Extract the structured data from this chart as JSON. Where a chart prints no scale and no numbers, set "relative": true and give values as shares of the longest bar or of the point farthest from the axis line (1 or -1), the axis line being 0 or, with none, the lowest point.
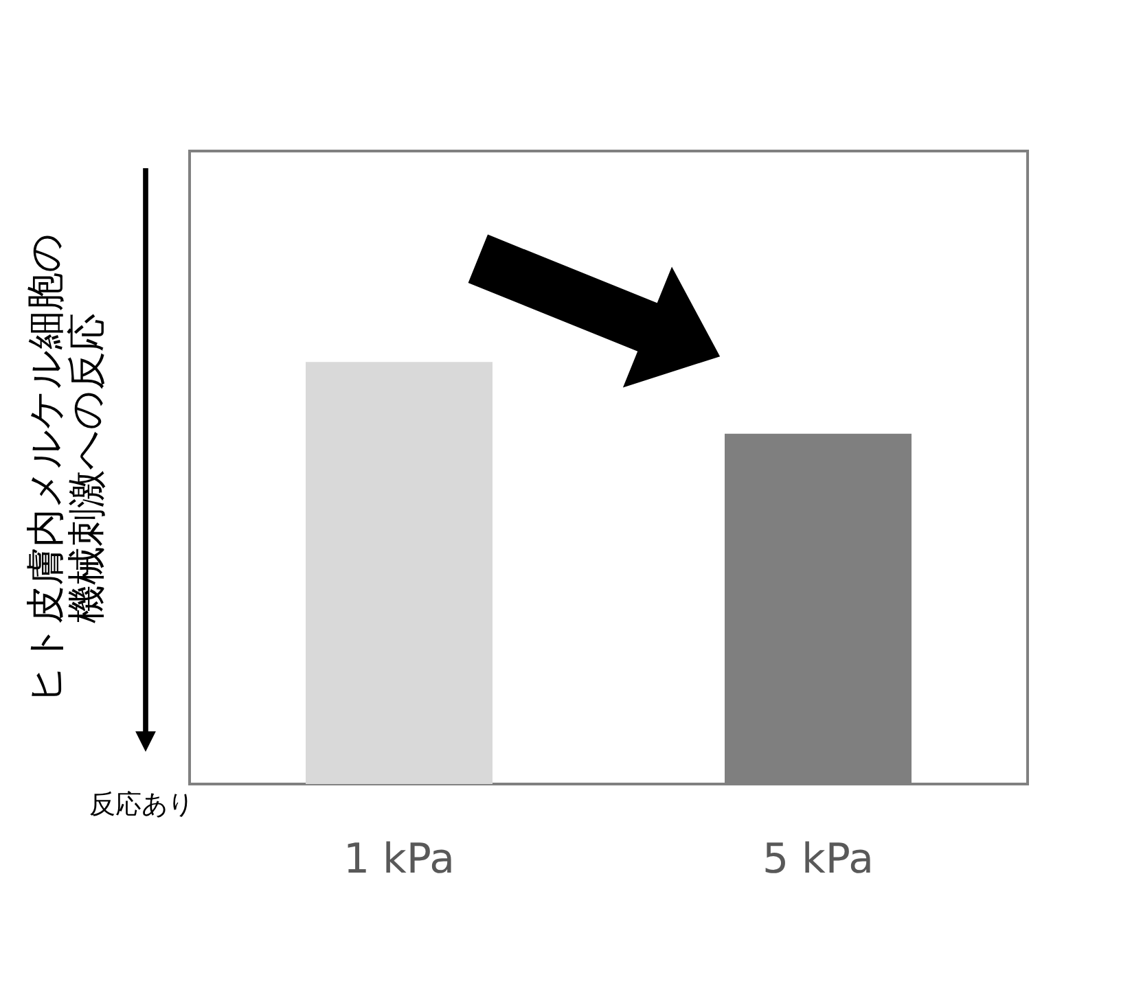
{
  "chart_data": {
    "type": "bar",
    "relative": true,
    "ylabel": "ヒト皮膚内メルケル細胞の機械刺激への反応",
    "categories": [
      "1 kPa",
      "5 kPa"
    ],
    "values": [
      1,
      0.83
    ],
    "colors": [
      "#d9d9d9",
      "#7f7f7f"
    ],
    "annotations": [
      "反応あり"
    ],
    "grid": false,
    "legend": false
  }
}
